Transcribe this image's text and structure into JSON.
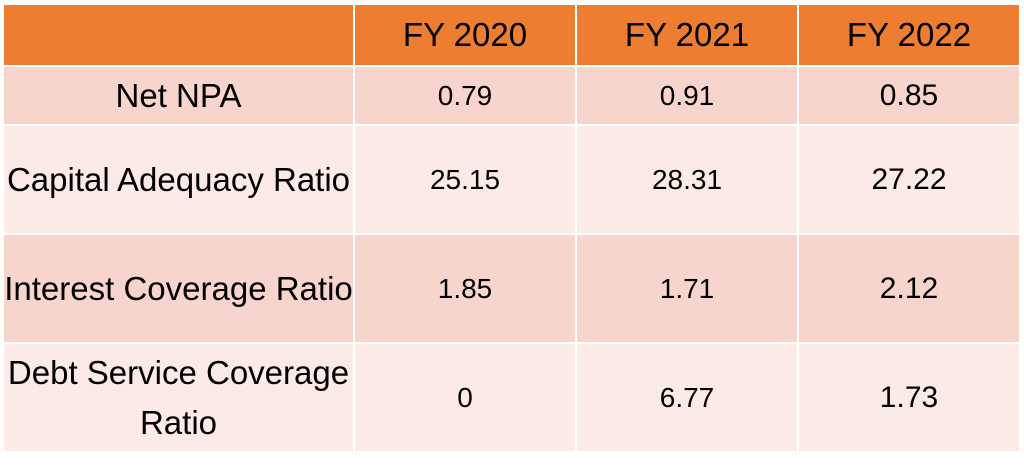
{
  "table": {
    "header": [
      "",
      "FY 2020",
      "FY 2021",
      "FY 2022"
    ],
    "rows": [
      {
        "label": "Net NPA",
        "values": [
          "0.79",
          "0.91",
          "0.85"
        ]
      },
      {
        "label": "Capital Adequacy Ratio",
        "values": [
          "25.15",
          "28.31",
          "27.22"
        ]
      },
      {
        "label": "Interest Coverage Ratio",
        "values": [
          "1.85",
          "1.71",
          "2.12"
        ]
      },
      {
        "label": "Debt Service Coverage Ratio",
        "values": [
          "0",
          "6.77",
          "1.73"
        ]
      }
    ]
  },
  "colors": {
    "header_bg": "#ED7D31",
    "row_odd_bg": "#F8D5CC",
    "row_even_bg": "#FCEAE6"
  }
}
